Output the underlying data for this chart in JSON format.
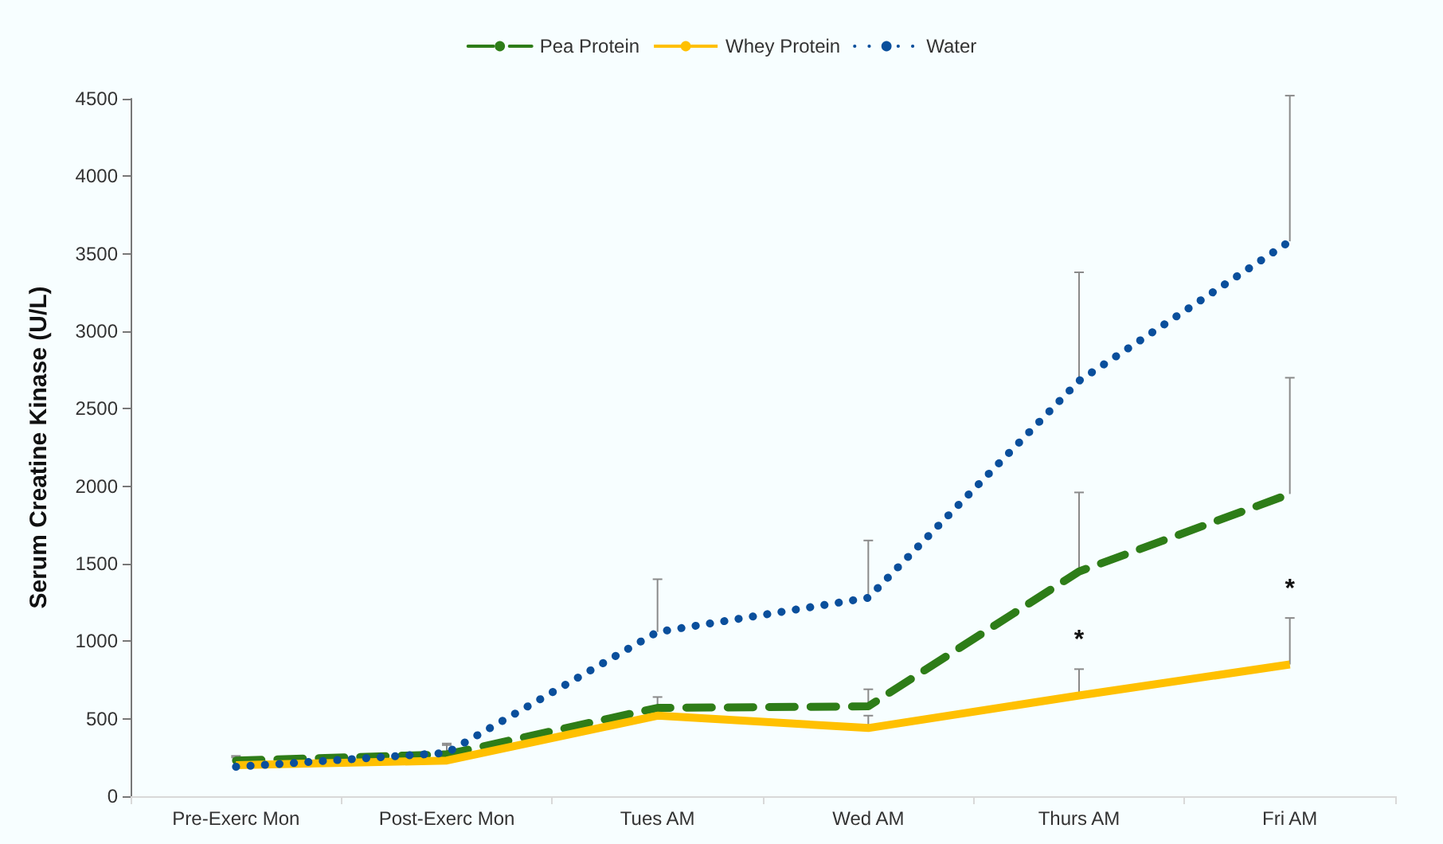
{
  "chart_data": {
    "type": "line",
    "ylabel": "Serum Creatine Kinase (U/L)",
    "categories": [
      "Pre-Exerc Mon",
      "Post-Exerc Mon",
      "Tues AM",
      "Wed AM",
      "Thurs AM",
      "Fri AM"
    ],
    "series": [
      {
        "name": "Pea Protein",
        "color": "#2e7d18",
        "line_style": "dashed",
        "values": [
          230,
          270,
          570,
          580,
          1450,
          1950
        ],
        "errors": [
          [
            230,
            260
          ],
          [
            270,
            330
          ],
          [
            570,
            640
          ],
          [
            580,
            690
          ],
          [
            1450,
            1960
          ],
          [
            1950,
            2700
          ]
        ]
      },
      {
        "name": "Whey Protein",
        "color": "#ffc000",
        "line_style": "solid",
        "values": [
          200,
          230,
          520,
          440,
          650,
          850
        ],
        "errors": [
          null,
          null,
          null,
          [
            440,
            520
          ],
          [
            650,
            820
          ],
          [
            850,
            1150
          ]
        ]
      },
      {
        "name": "Water",
        "color": "#0a4f9c",
        "line_style": "dotted",
        "values": [
          190,
          280,
          1060,
          1280,
          2680,
          3580
        ],
        "errors": [
          [
            190,
            250
          ],
          [
            280,
            340
          ],
          [
            1060,
            1400
          ],
          [
            1280,
            1650
          ],
          [
            2680,
            3380
          ],
          [
            3580,
            4520
          ]
        ]
      }
    ],
    "ylim": [
      0,
      4500
    ],
    "yticks": [
      0,
      500,
      1000,
      1500,
      2000,
      2500,
      3000,
      3500,
      4000,
      4500
    ],
    "grid": false,
    "legend": "top",
    "marker": "none",
    "annotations": [
      "*",
      "*"
    ]
  }
}
